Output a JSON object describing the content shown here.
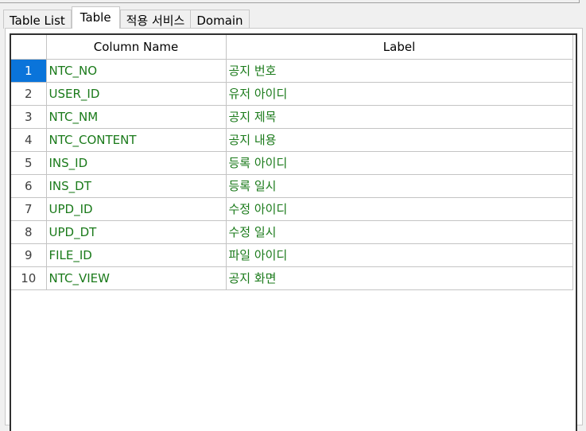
{
  "tabs": [
    {
      "label": "Table List",
      "active": false
    },
    {
      "label": "Table",
      "active": true
    },
    {
      "label": "적용 서비스",
      "active": false
    },
    {
      "label": "Domain",
      "active": false
    }
  ],
  "grid": {
    "headers": {
      "number": "",
      "column_name": "Column Name",
      "label": "Label"
    },
    "selected_row": "1",
    "rows": [
      {
        "num": "1",
        "column_name": "NTC_NO",
        "label": "공지 번호"
      },
      {
        "num": "2",
        "column_name": "USER_ID",
        "label": "유저 아이디"
      },
      {
        "num": "3",
        "column_name": "NTC_NM",
        "label": "공지 제목"
      },
      {
        "num": "4",
        "column_name": "NTC_CONTENT",
        "label": "공지 내용"
      },
      {
        "num": "5",
        "column_name": "INS_ID",
        "label": "등록 아이디"
      },
      {
        "num": "6",
        "column_name": "INS_DT",
        "label": "등록 일시"
      },
      {
        "num": "7",
        "column_name": "UPD_ID",
        "label": "수정 아이디"
      },
      {
        "num": "8",
        "column_name": "UPD_DT",
        "label": "수정 일시"
      },
      {
        "num": "9",
        "column_name": "FILE_ID",
        "label": "파일 아이디"
      },
      {
        "num": "10",
        "column_name": "NTC_VIEW",
        "label": "공지 화면"
      }
    ]
  },
  "colors": {
    "selection": "#0a74da",
    "cell_text": "#1a7a1a",
    "grid_border": "#303030"
  }
}
